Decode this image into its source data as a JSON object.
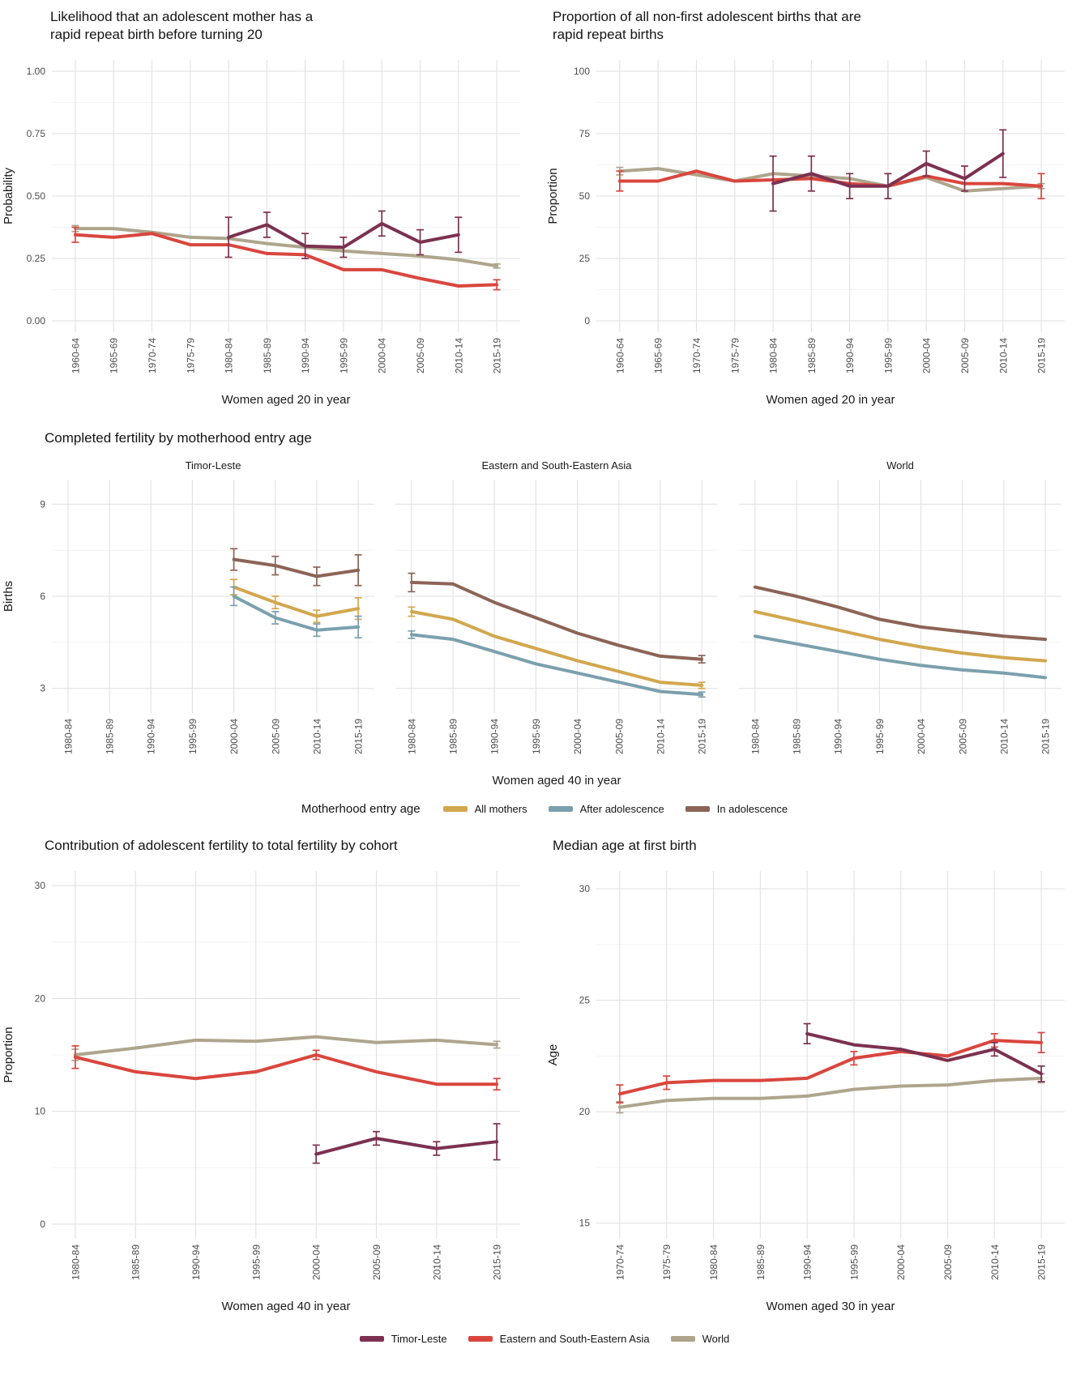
{
  "colors": {
    "timor": "#7C3150",
    "esea": "#D9463E",
    "world": "#AEA58C",
    "all_mothers": "#D2A74E",
    "after_adolescence": "#7BA0AD",
    "in_adolescence": "#8C6456"
  },
  "chart_data": [
    {
      "type": "line",
      "title": "Likelihood that an adolescent mother has a\nrapid repeat birth before turning 20",
      "ylabel": "Probability",
      "xlabel": "Women aged 20 in year",
      "categories": [
        "1960-64",
        "1965-69",
        "1970-74",
        "1975-79",
        "1980-84",
        "1985-89",
        "1990-94",
        "1995-99",
        "2000-04",
        "2005-09",
        "2010-14",
        "2015-19"
      ],
      "ylim": [
        -0.045,
        1.045
      ],
      "yticks": [
        0,
        0.25,
        0.5,
        0.75,
        1
      ],
      "ytick_labels": [
        "0.00",
        "0.25",
        "0.50",
        "0.75",
        "1.00"
      ],
      "grid": true,
      "legend_position": "none",
      "series": [
        {
          "name": "World",
          "color": "world",
          "values": [
            0.37,
            0.37,
            0.355,
            0.335,
            0.33,
            0.31,
            0.295,
            0.28,
            0.27,
            0.26,
            0.245,
            0.22
          ],
          "errors": [
            0.012,
            null,
            null,
            null,
            null,
            null,
            null,
            null,
            null,
            null,
            null,
            0.008
          ]
        },
        {
          "name": "Eastern and South-Eastern Asia",
          "color": "esea",
          "values": [
            0.345,
            0.335,
            0.35,
            0.305,
            0.305,
            0.27,
            0.265,
            0.205,
            0.205,
            0.17,
            0.14,
            0.145
          ],
          "errors": [
            0.03,
            null,
            null,
            null,
            null,
            null,
            null,
            null,
            null,
            null,
            null,
            0.02
          ]
        },
        {
          "name": "Timor-Leste",
          "color": "timor",
          "values": [
            null,
            null,
            null,
            null,
            0.335,
            0.385,
            0.3,
            0.295,
            0.39,
            0.315,
            0.345,
            null
          ],
          "errors": [
            null,
            null,
            null,
            null,
            0.08,
            0.05,
            0.05,
            0.04,
            0.05,
            0.05,
            0.07,
            null
          ]
        }
      ]
    },
    {
      "type": "line",
      "title": "Proportion of all non-first adolescent births that are\nrapid repeat births",
      "ylabel": "Proportion",
      "xlabel": "Women aged 20 in year",
      "categories": [
        "1960-64",
        "1965-69",
        "1970-74",
        "1975-79",
        "1980-84",
        "1985-89",
        "1990-94",
        "1995-99",
        "2000-04",
        "2005-09",
        "2010-14",
        "2015-19"
      ],
      "ylim": [
        -4.5,
        104.5
      ],
      "yticks": [
        0,
        25,
        50,
        75,
        100
      ],
      "ytick_labels": [
        "0",
        "25",
        "50",
        "75",
        "100"
      ],
      "grid": true,
      "legend_position": "none",
      "series": [
        {
          "name": "World",
          "color": "world",
          "values": [
            60,
            61,
            58.5,
            56,
            59,
            58,
            57,
            54,
            57.5,
            52,
            53,
            54
          ],
          "errors": [
            1.5,
            null,
            null,
            null,
            null,
            null,
            null,
            null,
            null,
            null,
            null,
            1
          ]
        },
        {
          "name": "Eastern and South-Eastern Asia",
          "color": "esea",
          "values": [
            56,
            56,
            60,
            56,
            56.5,
            57,
            55,
            54,
            58,
            55,
            55,
            54
          ],
          "errors": [
            4,
            null,
            null,
            null,
            null,
            null,
            null,
            null,
            null,
            null,
            null,
            5
          ]
        },
        {
          "name": "Timor-Leste",
          "color": "timor",
          "values": [
            null,
            null,
            null,
            null,
            55,
            59,
            54,
            54,
            63,
            57,
            67,
            null
          ],
          "errors": [
            null,
            null,
            null,
            null,
            11,
            7,
            5,
            5,
            5,
            5,
            9.5,
            null
          ]
        }
      ]
    },
    {
      "type": "line",
      "title": "Completed fertility by motherhood entry age",
      "ylabel": "Births",
      "xlabel": "Women aged 40 in year",
      "categories": [
        "1980-84",
        "1985-89",
        "1990-94",
        "1995-99",
        "2000-04",
        "2005-09",
        "2010-14",
        "2015-19"
      ],
      "ylim": [
        2.2,
        9.8
      ],
      "yticks": [
        3,
        6,
        9
      ],
      "ytick_labels": [
        "3",
        "6",
        "9"
      ],
      "grid": true,
      "legend_position": "bottom",
      "facets": [
        {
          "label": "Timor-Leste",
          "series": [
            {
              "name": "All mothers",
              "color": "all_mothers",
              "values": [
                null,
                null,
                null,
                null,
                6.3,
                5.8,
                5.35,
                5.6
              ],
              "errors": [
                null,
                null,
                null,
                null,
                0.25,
                0.2,
                0.2,
                0.35
              ]
            },
            {
              "name": "After adolescence",
              "color": "after_adolescence",
              "values": [
                null,
                null,
                null,
                null,
                6.0,
                5.3,
                4.9,
                5.0
              ],
              "errors": [
                null,
                null,
                null,
                null,
                0.3,
                0.2,
                0.2,
                0.35
              ]
            },
            {
              "name": "In adolescence",
              "color": "in_adolescence",
              "values": [
                null,
                null,
                null,
                null,
                7.2,
                7.0,
                6.65,
                6.85
              ],
              "errors": [
                null,
                null,
                null,
                null,
                0.35,
                0.3,
                0.3,
                0.5
              ]
            }
          ]
        },
        {
          "label": "Eastern and South-Eastern Asia",
          "series": [
            {
              "name": "All mothers",
              "color": "all_mothers",
              "values": [
                5.5,
                5.25,
                4.7,
                4.3,
                3.9,
                3.55,
                3.2,
                3.1
              ],
              "errors": [
                0.15,
                null,
                null,
                null,
                null,
                null,
                null,
                0.1
              ]
            },
            {
              "name": "After adolescence",
              "color": "after_adolescence",
              "values": [
                4.75,
                4.6,
                4.2,
                3.8,
                3.5,
                3.2,
                2.9,
                2.8
              ],
              "errors": [
                0.12,
                null,
                null,
                null,
                null,
                null,
                null,
                0.08
              ]
            },
            {
              "name": "In adolescence",
              "color": "in_adolescence",
              "values": [
                6.45,
                6.4,
                5.8,
                5.3,
                4.8,
                4.4,
                4.05,
                3.95
              ],
              "errors": [
                0.3,
                null,
                null,
                null,
                null,
                null,
                null,
                0.12
              ]
            }
          ]
        },
        {
          "label": "World",
          "series": [
            {
              "name": "All mothers",
              "color": "all_mothers",
              "values": [
                5.5,
                5.2,
                4.9,
                4.6,
                4.35,
                4.15,
                4.0,
                3.9
              ],
              "errors": null
            },
            {
              "name": "After adolescence",
              "color": "after_adolescence",
              "values": [
                4.7,
                4.45,
                4.2,
                3.95,
                3.75,
                3.6,
                3.5,
                3.35
              ],
              "errors": null
            },
            {
              "name": "In adolescence",
              "color": "in_adolescence",
              "values": [
                6.3,
                6.0,
                5.65,
                5.25,
                5.0,
                4.85,
                4.7,
                4.6
              ],
              "errors": null
            }
          ]
        }
      ]
    },
    {
      "type": "line",
      "title": "Contribution of adolescent fertility to total fertility by cohort",
      "ylabel": "Proportion",
      "xlabel": "Women aged 40 in year",
      "categories": [
        "1980-84",
        "1985-89",
        "1990-94",
        "1995-99",
        "2000-04",
        "2005-09",
        "2010-14",
        "2015-19"
      ],
      "ylim": [
        -1.3,
        31.3
      ],
      "yticks": [
        0,
        10,
        20,
        30
      ],
      "ytick_labels": [
        "0",
        "10",
        "20",
        "30"
      ],
      "grid": true,
      "legend_position": "bottom-shared",
      "series": [
        {
          "name": "World",
          "color": "world",
          "values": [
            15.0,
            15.6,
            16.3,
            16.2,
            16.6,
            16.1,
            16.3,
            15.9
          ],
          "errors": [
            0.5,
            null,
            null,
            null,
            null,
            null,
            null,
            0.3
          ]
        },
        {
          "name": "Eastern and South-Eastern Asia",
          "color": "esea",
          "values": [
            14.8,
            13.5,
            12.9,
            13.5,
            15.0,
            13.5,
            12.4,
            12.4
          ],
          "errors": [
            1.0,
            null,
            null,
            null,
            0.4,
            null,
            null,
            0.5
          ]
        },
        {
          "name": "Timor-Leste",
          "color": "timor",
          "values": [
            null,
            null,
            null,
            null,
            6.2,
            7.6,
            6.7,
            7.3
          ],
          "errors": [
            null,
            null,
            null,
            null,
            0.8,
            0.6,
            0.6,
            1.6
          ]
        }
      ]
    },
    {
      "type": "line",
      "title": "Median age at first birth",
      "ylabel": "Age",
      "xlabel": "Women aged 30 in year",
      "categories": [
        "1970-74",
        "1975-79",
        "1980-84",
        "1985-89",
        "1990-94",
        "1995-99",
        "2000-04",
        "2005-09",
        "2010-14",
        "2015-19"
      ],
      "ylim": [
        14.3,
        30.8
      ],
      "yticks": [
        15,
        20,
        25,
        30
      ],
      "ytick_labels": [
        "15",
        "20",
        "25",
        "30"
      ],
      "grid": true,
      "legend_position": "bottom-shared",
      "series": [
        {
          "name": "World",
          "color": "world",
          "values": [
            20.2,
            20.5,
            20.6,
            20.6,
            20.7,
            21.0,
            21.15,
            21.2,
            21.4,
            21.5
          ],
          "errors": [
            0.25,
            null,
            null,
            null,
            null,
            null,
            null,
            null,
            null,
            0.2
          ]
        },
        {
          "name": "Eastern and South-Eastern Asia",
          "color": "esea",
          "values": [
            20.8,
            21.3,
            21.4,
            21.4,
            21.5,
            22.4,
            22.7,
            22.5,
            23.2,
            23.1
          ],
          "errors": [
            0.4,
            0.3,
            null,
            null,
            null,
            0.3,
            null,
            null,
            0.3,
            0.45
          ]
        },
        {
          "name": "Timor-Leste",
          "color": "timor",
          "values": [
            null,
            null,
            null,
            null,
            23.5,
            23.0,
            22.8,
            22.3,
            22.8,
            21.7
          ],
          "errors": [
            null,
            null,
            null,
            null,
            0.45,
            null,
            null,
            null,
            0.3,
            0.35
          ]
        }
      ]
    }
  ],
  "legends": {
    "motherhood": {
      "title": "Motherhood entry age",
      "items": [
        {
          "label": "All mothers",
          "color": "all_mothers"
        },
        {
          "label": "After adolescence",
          "color": "after_adolescence"
        },
        {
          "label": "In adolescence",
          "color": "in_adolescence"
        }
      ]
    },
    "regions": {
      "title": "",
      "items": [
        {
          "label": "Timor-Leste",
          "color": "timor"
        },
        {
          "label": "Eastern and South-Eastern Asia",
          "color": "esea"
        },
        {
          "label": "World",
          "color": "world"
        }
      ]
    }
  }
}
